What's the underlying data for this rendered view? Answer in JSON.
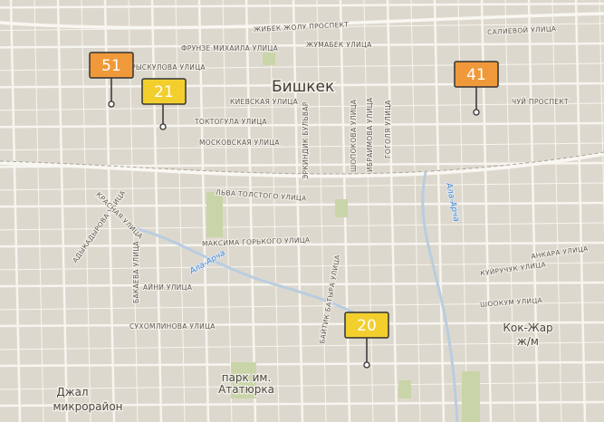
{
  "map": {
    "city": "Бишкек",
    "streets": [
      "ЖИБЕК ЖОЛУ ПРОСПЕКТ",
      "САЛИЕВОЙ УЛИЦА",
      "ФРУНЗЕ МИХАИЛА УЛИЦА",
      "ЖУМАБЕК УЛИЦА",
      "РЫСКУЛОВА УЛИЦА",
      "КИЕВСКАЯ УЛИЦА",
      "ЧУЙ ПРОСПЕКТ",
      "ТОКТОГУЛА УЛИЦА",
      "МОСКОВСКАЯ УЛИЦА",
      "ЭРКИНДИК БУЛЬВАР",
      "ШОПОКОВА УЛИЦА",
      "ИБРАИМОВА УЛИЦА",
      "ГОГОЛЯ УЛИЦА",
      "ЛЬВА ТОЛСТОГО УЛИЦА",
      "АДЫКАДЫРОВА УЛИЦА",
      "КРАСНАЯ УЛИЦА",
      "МАКСИМА ГОРЬКОГО УЛИЦА",
      "АНКАРА УЛИЦА",
      "КУЙРУЧУК УЛИЦА",
      "ШООКУМ УЛИЦА",
      "БАКАЕВА УЛИЦА",
      "АЙНИ УЛИЦА",
      "СУХОМЛИНОВА УЛИЦА",
      "БАЙТИК БАТЫРА УЛИЦА"
    ],
    "rivers": [
      "Ала-Арча",
      "Ала-Арча"
    ],
    "places": [
      [
        "Кок-Жар",
        "ж/м"
      ],
      [
        "парк им.",
        "Ататюрка"
      ],
      [
        "Джал",
        "микрорайон"
      ]
    ],
    "markers": [
      {
        "value": 51,
        "color": "#f0993a"
      },
      {
        "value": 21,
        "color": "#f3cf2e"
      },
      {
        "value": 41,
        "color": "#f0993a"
      },
      {
        "value": 20,
        "color": "#f3cf2e"
      }
    ]
  }
}
